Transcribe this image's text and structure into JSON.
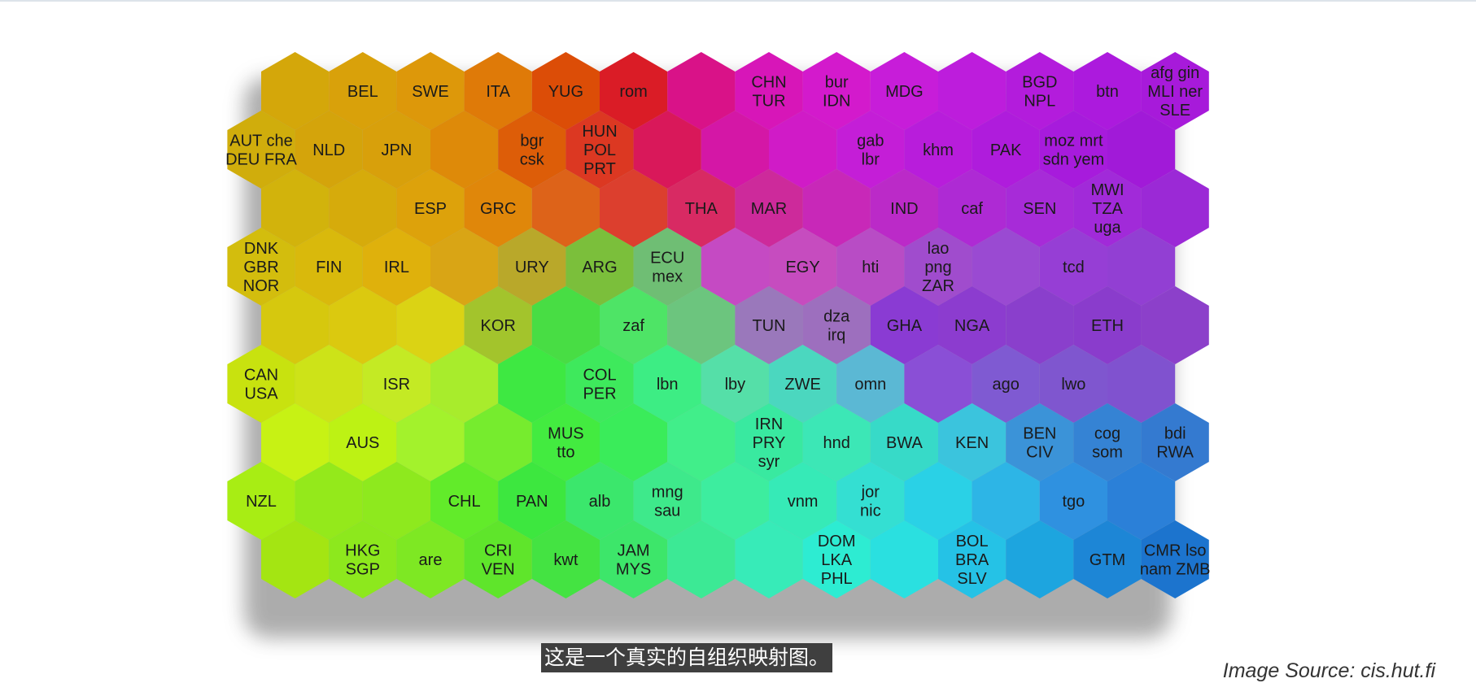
{
  "caption": "这是一个真实的自组织映射图。",
  "image_source": "Image Source: cis.hut.fi",
  "som_map": {
    "rows": 9,
    "cols": 14,
    "colors": [
      [
        "#d4a70a",
        "#d9a10a",
        "#dd980a",
        "#df7a08",
        "#dc4d07",
        "#da1c26",
        "#d91288",
        "#d716b8",
        "#d31acc",
        "#c71dd9",
        "#bd1ddc",
        "#b31cdc",
        "#ac1add",
        "#a71ada"
      ],
      [
        "#d0ad0c",
        "#d4a40b",
        "#d8a00b",
        "#de8a09",
        "#dd5d08",
        "#dc3822",
        "#d9185a",
        "#d417a6",
        "#d01bc7",
        "#c41ed7",
        "#b81ddb",
        "#af1cdc",
        "#a71bdc",
        "#a11ad8"
      ],
      [
        "#d2b30c",
        "#d6ab0b",
        "#dda20b",
        "#e0870a",
        "#dd6319",
        "#dc3f2e",
        "#d82a63",
        "#cd2a9b",
        "#c828b8",
        "#bb2ac8",
        "#ae2ad4",
        "#a72bd8",
        "#a12ad9",
        "#9b29d6"
      ],
      [
        "#d3bd0d",
        "#d9b90c",
        "#dfb10c",
        "#d9a515",
        "#b9a82a",
        "#7bbf3b",
        "#6fbe74",
        "#c54ac3",
        "#c64cbf",
        "#b84cc5",
        "#a04ccd",
        "#9a4ad2",
        "#963ed5",
        "#923fd3"
      ],
      [
        "#d6c80e",
        "#dbc90f",
        "#dbd314",
        "#a3c42c",
        "#48dd44",
        "#4ee466",
        "#6cc57e",
        "#9a78bb",
        "#9d6fbe",
        "#8a3bd3",
        "#8c3ccf",
        "#8a3fcc",
        "#8a3ccc",
        "#8c40ca"
      ],
      [
        "#c8e20f",
        "#cde318",
        "#c4ea24",
        "#a8ec2c",
        "#3ee842",
        "#3ee95c",
        "#3ded84",
        "#55dfa8",
        "#4bd7bf",
        "#5bb8d4",
        "#8a4fd6",
        "#7f5ad2",
        "#7f56cf",
        "#8052cf"
      ],
      [
        "#c7f214",
        "#bdf214",
        "#a3f22c",
        "#76ec2e",
        "#43eb40",
        "#3aec5a",
        "#41ee8a",
        "#39e9a0",
        "#3ce7b6",
        "#37dac8",
        "#3bc4dd",
        "#3b93d8",
        "#3583d4",
        "#347ad0"
      ],
      [
        "#a8ed14",
        "#94e91b",
        "#8ee91e",
        "#62eb2a",
        "#3de73f",
        "#3be76c",
        "#3ee98b",
        "#3ded9f",
        "#36eab7",
        "#34dfd2",
        "#2ad1e6",
        "#2db5e6",
        "#2f91e0",
        "#2b80d8"
      ],
      [
        "#a4e512",
        "#8de81d",
        "#7ee823",
        "#5fe52b",
        "#44e342",
        "#3de66a",
        "#3ce995",
        "#37ebb8",
        "#2decd2",
        "#2ae0e0",
        "#25c2e6",
        "#1da5df",
        "#1d86d6",
        "#1c74ce"
      ]
    ],
    "labels": [
      [
        "",
        "BEL",
        "SWE",
        "ITA",
        "YUG",
        "rom",
        "",
        "CHN TUR",
        "bur IDN",
        "MDG",
        "",
        "BGD NPL",
        "btn",
        "afg gin MLI ner SLE"
      ],
      [
        "AUT che DEU FRA",
        "NLD",
        "JPN",
        "",
        "bgr csk",
        "HUN POL PRT",
        "",
        "",
        "",
        "gab lbr",
        "khm",
        "PAK",
        "moz mrt sdn yem",
        ""
      ],
      [
        "",
        "",
        "ESP",
        "GRC",
        "",
        "",
        "THA",
        "MAR",
        "",
        "IND",
        "caf",
        "SEN",
        "MWI TZA uga",
        ""
      ],
      [
        "DNK GBR NOR",
        "FIN",
        "IRL",
        "",
        "URY",
        "ARG",
        "ECU mex",
        "",
        "EGY",
        "hti",
        "lao png ZAR",
        "",
        "tcd",
        ""
      ],
      [
        "",
        "",
        "",
        "KOR",
        "",
        "zaf",
        "",
        "TUN",
        "dza irq",
        "GHA",
        "NGA",
        "",
        "ETH",
        ""
      ],
      [
        "CAN USA",
        "",
        "ISR",
        "",
        "",
        "COL PER",
        "lbn",
        "lby",
        "ZWE",
        "omn",
        "",
        "ago",
        "lwo",
        ""
      ],
      [
        "",
        "AUS",
        "",
        "",
        "MUS tto",
        "",
        "",
        "IRN PRY syr",
        "hnd",
        "BWA",
        "KEN",
        "BEN CIV",
        "cog som",
        "bdi RWA"
      ],
      [
        "NZL",
        "",
        "",
        "CHL",
        "PAN",
        "alb",
        "mng sau",
        "",
        "vnm",
        "jor nic",
        "",
        "",
        "tgo",
        ""
      ],
      [
        "",
        "HKG SGP",
        "are",
        "CRI VEN",
        "kwt",
        "JAM MYS",
        "",
        "",
        "DOM LKA PHL",
        "",
        "BOL BRA SLV",
        "",
        "GTM",
        "CMR lso nam ZMB"
      ]
    ],
    "label_lines": {
      "0,13": [
        "afg gin",
        "MLI ner",
        "SLE"
      ],
      "1,12": [
        "moz mrt",
        "sdn yem"
      ],
      "1,0": [
        "AUT che",
        "DEU FRA"
      ],
      "8,13": [
        "CMR lso",
        "nam ZMB"
      ]
    }
  }
}
